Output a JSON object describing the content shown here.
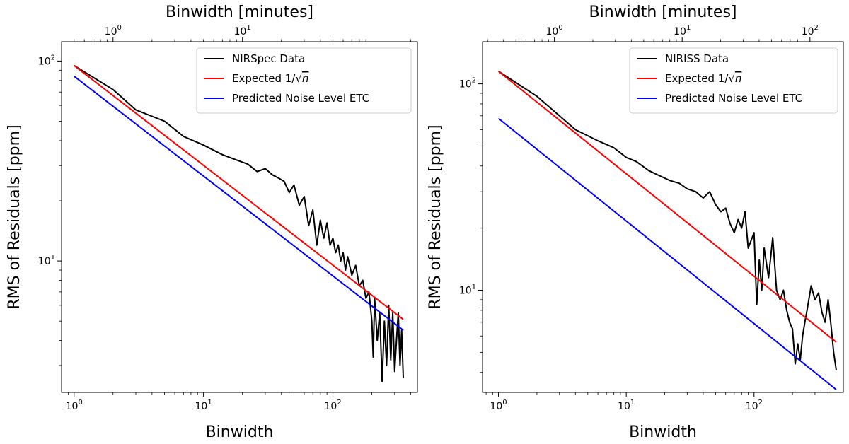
{
  "chart_data": [
    {
      "type": "line",
      "scale": "log-log",
      "title": "",
      "xlabel": "Binwidth",
      "ylabel": "RMS of Residuals [ppm]",
      "top_xlabel": "Binwidth [minutes]",
      "xlim": [
        0.8,
        450
      ],
      "ylim": [
        2.2,
        125
      ],
      "x_ticks": [
        {
          "value": 1,
          "label": "10",
          "exp": "0"
        },
        {
          "value": 10,
          "label": "10",
          "exp": "1"
        },
        {
          "value": 100,
          "label": "10",
          "exp": "2"
        }
      ],
      "y_ticks": [
        {
          "value": 10,
          "label": "10",
          "exp": "1"
        },
        {
          "value": 100,
          "label": "10",
          "exp": "2"
        }
      ],
      "top_ticks": [
        {
          "minutes": 1,
          "label": "10",
          "exp": "0"
        },
        {
          "minutes": 10,
          "label": "10",
          "exp": "1"
        }
      ],
      "minutes_per_bin": 0.5,
      "legend_position": "top-right",
      "series": [
        {
          "name": "NIRSpec Data",
          "color": "#000000",
          "x": [
            1,
            2,
            3,
            5,
            7,
            10,
            14,
            18,
            22,
            26,
            30,
            34,
            38,
            42,
            46,
            50,
            55,
            60,
            65,
            70,
            75,
            80,
            85,
            90,
            95,
            100,
            105,
            110,
            115,
            120,
            125,
            130,
            140,
            150,
            160,
            170,
            180,
            190,
            200,
            205,
            210,
            220,
            230,
            240,
            250,
            260,
            270,
            280,
            290,
            300,
            310,
            320,
            330,
            340,
            350
          ],
          "y": [
            95,
            72,
            57,
            50,
            42,
            38,
            34,
            32,
            30.5,
            28,
            29,
            27,
            26,
            25,
            22,
            24,
            19,
            21,
            15,
            18,
            12,
            16,
            13,
            15.5,
            12,
            13,
            11,
            12,
            10,
            11,
            9,
            10.5,
            8.5,
            9.5,
            7.5,
            8,
            6.5,
            7,
            5,
            3.3,
            6.5,
            4,
            5.5,
            2.5,
            5,
            3,
            6,
            3.2,
            5.5,
            2.8,
            4,
            5.5,
            3,
            4.5,
            2.6
          ]
        },
        {
          "name": "Expected 1/√n",
          "legend_label": "Expected 1/",
          "legend_sqrt": "√",
          "legend_n": "n",
          "color": "#ff0000",
          "x": [
            1,
            350
          ],
          "y": [
            95,
            5.1
          ]
        },
        {
          "name": "Predicted Noise Level ETC",
          "color": "#0000ff",
          "x": [
            1,
            350
          ],
          "y": [
            84,
            4.5
          ]
        }
      ]
    },
    {
      "type": "line",
      "scale": "log-log",
      "title": "",
      "xlabel": "Binwidth",
      "ylabel": "RMS of Residuals [ppm]",
      "top_xlabel": "Binwidth [minutes]",
      "xlim": [
        0.75,
        500
      ],
      "ylim": [
        3.2,
        160
      ],
      "x_ticks": [
        {
          "value": 1,
          "label": "10",
          "exp": "0"
        },
        {
          "value": 10,
          "label": "10",
          "exp": "1"
        },
        {
          "value": 100,
          "label": "10",
          "exp": "2"
        }
      ],
      "y_ticks": [
        {
          "value": 10,
          "label": "10",
          "exp": "1"
        },
        {
          "value": 100,
          "label": "10",
          "exp": "2"
        }
      ],
      "top_ticks": [
        {
          "minutes": 1,
          "label": "10",
          "exp": "0"
        },
        {
          "minutes": 10,
          "label": "10",
          "exp": "1"
        },
        {
          "minutes": 100,
          "label": "10",
          "exp": "2"
        }
      ],
      "minutes_per_bin": 0.365,
      "legend_position": "top-right",
      "series": [
        {
          "name": "NIRISS Data",
          "color": "#000000",
          "x": [
            1,
            2,
            3,
            4,
            6,
            8,
            10,
            12,
            15,
            18,
            22,
            26,
            30,
            35,
            40,
            45,
            50,
            55,
            60,
            65,
            70,
            75,
            80,
            85,
            90,
            100,
            105,
            110,
            115,
            120,
            130,
            140,
            150,
            160,
            170,
            180,
            190,
            200,
            210,
            220,
            230,
            240,
            250,
            260,
            280,
            300,
            320,
            340,
            360,
            380,
            400,
            420,
            440
          ],
          "y": [
            115,
            87,
            70,
            60,
            53,
            49,
            44,
            42,
            38,
            36,
            34,
            33,
            31,
            30,
            28,
            30,
            26,
            24,
            25,
            21,
            19,
            22,
            20,
            24,
            16,
            19,
            8.5,
            14,
            10,
            16,
            11.5,
            18,
            10,
            9,
            10,
            8,
            7,
            6.5,
            4.4,
            5.5,
            4.6,
            6,
            7,
            8,
            10.5,
            9,
            9.7,
            7.8,
            7,
            9,
            6.8,
            5,
            4.1
          ]
        },
        {
          "name": "Expected 1/√n",
          "legend_label": "Expected 1/",
          "legend_sqrt": "√",
          "legend_n": "n",
          "color": "#ff0000",
          "x": [
            1,
            440
          ],
          "y": [
            115,
            5.6
          ]
        },
        {
          "name": "Predicted Noise Level ETC",
          "color": "#0000ff",
          "x": [
            1,
            440
          ],
          "y": [
            68,
            3.3
          ]
        }
      ]
    }
  ]
}
